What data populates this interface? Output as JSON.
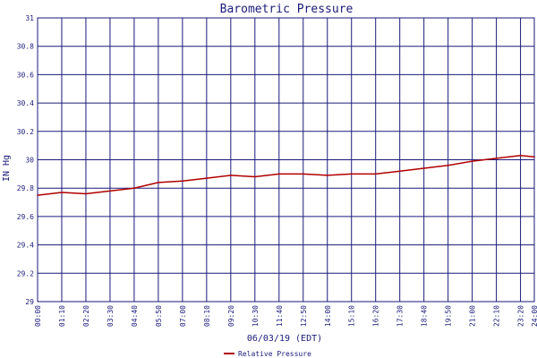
{
  "chart_data": {
    "type": "line",
    "title": "Barometric Pressure",
    "xlabel": "06/03/19 (EDT)",
    "ylabel": "IN Hg",
    "ylim": [
      29,
      31
    ],
    "yticks": [
      "29",
      "29.2",
      "29.4",
      "29.6",
      "29.8",
      "30",
      "30.2",
      "30.4",
      "30.6",
      "30.8",
      "31"
    ],
    "xticks": [
      "00:00",
      "01:10",
      "02:20",
      "03:30",
      "04:40",
      "05:50",
      "07:00",
      "08:10",
      "09:20",
      "10:30",
      "11:40",
      "12:50",
      "14:00",
      "15:10",
      "16:20",
      "17:30",
      "18:40",
      "19:50",
      "21:00",
      "22:10",
      "23:20",
      "24:00"
    ],
    "grid": true,
    "legend_position": "bottom",
    "series": [
      {
        "name": "Relative Pressure",
        "color": "#b00000",
        "x": [
          "00:00",
          "01:10",
          "02:20",
          "03:30",
          "04:40",
          "05:50",
          "07:00",
          "08:10",
          "09:20",
          "10:30",
          "11:40",
          "12:50",
          "14:00",
          "15:10",
          "16:20",
          "17:30",
          "18:40",
          "19:50",
          "21:00",
          "22:10",
          "23:20",
          "24:00"
        ],
        "values": [
          29.75,
          29.77,
          29.76,
          29.78,
          29.8,
          29.84,
          29.85,
          29.87,
          29.89,
          29.88,
          29.9,
          29.9,
          29.89,
          29.9,
          29.9,
          29.92,
          29.94,
          29.96,
          29.99,
          30.01,
          30.03,
          30.02
        ]
      }
    ]
  }
}
